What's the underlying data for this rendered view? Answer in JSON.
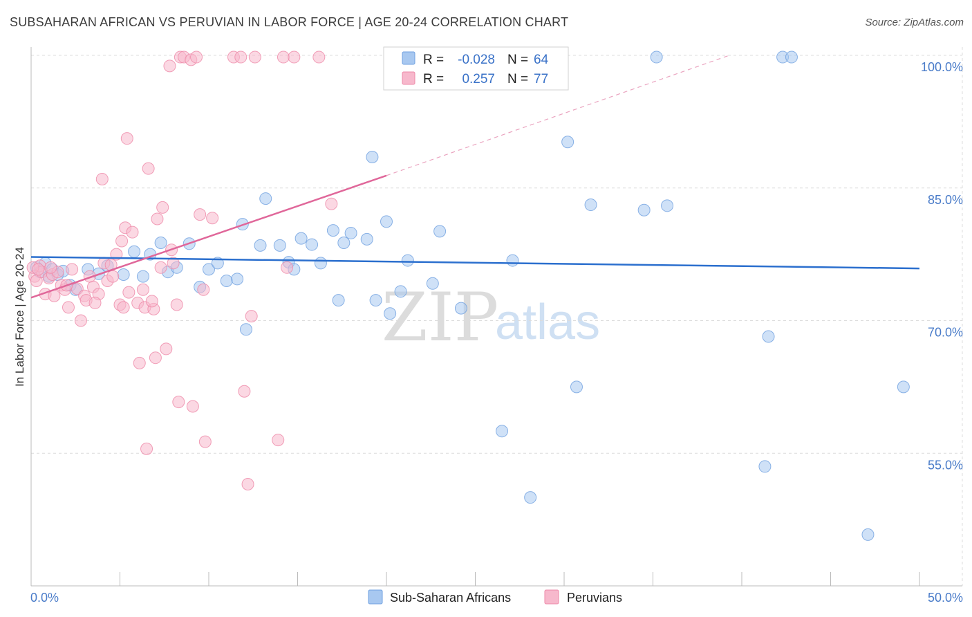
{
  "title": "SUBSAHARAN AFRICAN VS PERUVIAN IN LABOR FORCE | AGE 20-24 CORRELATION CHART",
  "source": "Source: ZipAtlas.com",
  "watermark": {
    "zip": "ZIP",
    "atlas": "atlas"
  },
  "legend": {
    "r_label": "R =",
    "n_label": "N =",
    "rows": [
      {
        "r": "-0.028",
        "n": "64",
        "color": "#a8c8f0"
      },
      {
        "r": "0.257",
        "n": "77",
        "color": "#f7b8cc"
      }
    ]
  },
  "bottom_legend": [
    "Sub-Saharan Africans",
    "Peruvians"
  ],
  "chart_data": {
    "type": "scatter",
    "title": "SUBSAHARAN AFRICAN VS PERUVIAN IN LABOR FORCE | AGE 20-24 CORRELATION CHART",
    "xlabel": "",
    "ylabel": "In Labor Force | Age 20-24",
    "xlim": [
      0,
      50
    ],
    "ylim": [
      40,
      100
    ],
    "x_tick_labels": [
      "0.0%",
      "50.0%"
    ],
    "y_tick_labels": [
      "55.0%",
      "70.0%",
      "85.0%",
      "100.0%"
    ],
    "y_ticks": [
      55,
      70,
      85,
      100
    ],
    "grid": true,
    "legend_position": "top-center",
    "series": [
      {
        "name": "Sub-Saharan Africans",
        "color": "#6fa0e0",
        "fill": "#a8c8f0",
        "r": -0.028,
        "n": 64,
        "trend": {
          "x": [
            0,
            50
          ],
          "y": [
            77.2,
            75.9
          ]
        },
        "points": [
          [
            0.3,
            76.0
          ],
          [
            0.5,
            75.5
          ],
          [
            0.8,
            76.5
          ],
          [
            1.0,
            75.0
          ],
          [
            1.2,
            75.8
          ],
          [
            1.5,
            75.2
          ],
          [
            1.8,
            75.6
          ],
          [
            2.2,
            74.0
          ],
          [
            2.5,
            73.5
          ],
          [
            3.2,
            75.8
          ],
          [
            3.8,
            75.3
          ],
          [
            4.3,
            76.2
          ],
          [
            5.2,
            75.2
          ],
          [
            5.8,
            77.8
          ],
          [
            6.3,
            75.0
          ],
          [
            6.7,
            77.5
          ],
          [
            7.3,
            78.8
          ],
          [
            7.7,
            75.5
          ],
          [
            8.2,
            76.0
          ],
          [
            8.9,
            78.7
          ],
          [
            9.5,
            73.8
          ],
          [
            10.0,
            75.8
          ],
          [
            10.5,
            76.5
          ],
          [
            11.0,
            74.5
          ],
          [
            11.6,
            74.7
          ],
          [
            11.9,
            80.9
          ],
          [
            12.1,
            69.0
          ],
          [
            12.9,
            78.5
          ],
          [
            13.2,
            83.8
          ],
          [
            14.0,
            78.5
          ],
          [
            14.5,
            76.6
          ],
          [
            14.8,
            75.8
          ],
          [
            15.2,
            79.3
          ],
          [
            15.8,
            78.6
          ],
          [
            16.3,
            76.5
          ],
          [
            17.0,
            80.2
          ],
          [
            17.3,
            72.3
          ],
          [
            17.6,
            78.8
          ],
          [
            18.0,
            79.9
          ],
          [
            18.9,
            79.2
          ],
          [
            19.2,
            88.5
          ],
          [
            19.4,
            72.3
          ],
          [
            20.0,
            81.2
          ],
          [
            20.2,
            70.8
          ],
          [
            20.8,
            73.3
          ],
          [
            21.2,
            76.8
          ],
          [
            22.6,
            74.2
          ],
          [
            23.0,
            80.1
          ],
          [
            24.2,
            71.4
          ],
          [
            26.5,
            57.5
          ],
          [
            27.1,
            76.8
          ],
          [
            28.1,
            50.0
          ],
          [
            30.2,
            90.2
          ],
          [
            30.7,
            62.5
          ],
          [
            31.5,
            83.1
          ],
          [
            34.5,
            82.5
          ],
          [
            35.8,
            83.0
          ],
          [
            35.2,
            99.8
          ],
          [
            41.3,
            53.5
          ],
          [
            41.5,
            68.2
          ],
          [
            42.3,
            99.8
          ],
          [
            42.8,
            99.8
          ],
          [
            47.1,
            45.8
          ],
          [
            49.1,
            62.5
          ]
        ]
      },
      {
        "name": "Peruvians",
        "color": "#ee88a8",
        "fill": "#f7b8cc",
        "r": 0.257,
        "n": 77,
        "trend": {
          "x": [
            0,
            20
          ],
          "y": [
            72.6,
            86.4
          ]
        },
        "trend_dashed": {
          "x": [
            20,
            39.3
          ],
          "y": [
            86.4,
            100.0
          ]
        },
        "points": [
          [
            0.2,
            75.0
          ],
          [
            0.3,
            74.5
          ],
          [
            0.5,
            76.2
          ],
          [
            0.6,
            75.5
          ],
          [
            0.8,
            73.0
          ],
          [
            1.0,
            74.8
          ],
          [
            1.2,
            75.2
          ],
          [
            1.3,
            72.8
          ],
          [
            1.5,
            75.5
          ],
          [
            1.7,
            74.0
          ],
          [
            1.9,
            73.5
          ],
          [
            2.1,
            71.5
          ],
          [
            2.3,
            75.8
          ],
          [
            2.6,
            73.6
          ],
          [
            2.8,
            70.0
          ],
          [
            3.0,
            72.8
          ],
          [
            3.1,
            72.3
          ],
          [
            3.3,
            75.0
          ],
          [
            3.5,
            73.8
          ],
          [
            3.8,
            73.0
          ],
          [
            4.0,
            86.0
          ],
          [
            4.1,
            76.5
          ],
          [
            4.3,
            74.5
          ],
          [
            4.5,
            76.3
          ],
          [
            4.6,
            75.0
          ],
          [
            4.8,
            77.5
          ],
          [
            5.0,
            71.8
          ],
          [
            5.1,
            79.0
          ],
          [
            5.2,
            71.5
          ],
          [
            5.3,
            80.5
          ],
          [
            5.4,
            90.6
          ],
          [
            5.5,
            73.2
          ],
          [
            5.7,
            80.0
          ],
          [
            6.0,
            72.0
          ],
          [
            6.1,
            65.2
          ],
          [
            6.3,
            73.5
          ],
          [
            6.4,
            71.5
          ],
          [
            6.5,
            55.5
          ],
          [
            6.6,
            87.2
          ],
          [
            6.9,
            71.3
          ],
          [
            7.0,
            65.8
          ],
          [
            7.1,
            81.5
          ],
          [
            7.3,
            76.0
          ],
          [
            7.4,
            82.8
          ],
          [
            7.6,
            66.8
          ],
          [
            7.8,
            98.8
          ],
          [
            7.9,
            78.0
          ],
          [
            8.0,
            76.5
          ],
          [
            8.2,
            71.8
          ],
          [
            8.3,
            60.8
          ],
          [
            8.4,
            99.8
          ],
          [
            8.6,
            99.8
          ],
          [
            9.0,
            99.5
          ],
          [
            9.1,
            60.3
          ],
          [
            9.3,
            99.8
          ],
          [
            9.5,
            82.0
          ],
          [
            9.7,
            73.5
          ],
          [
            9.8,
            56.3
          ],
          [
            10.2,
            81.6
          ],
          [
            11.4,
            99.8
          ],
          [
            11.8,
            99.8
          ],
          [
            12.0,
            62.0
          ],
          [
            12.2,
            51.5
          ],
          [
            12.4,
            70.5
          ],
          [
            12.6,
            99.8
          ],
          [
            13.9,
            56.5
          ],
          [
            14.2,
            99.8
          ],
          [
            14.4,
            76.0
          ],
          [
            14.8,
            99.8
          ],
          [
            16.2,
            99.8
          ],
          [
            16.9,
            83.2
          ],
          [
            0.1,
            76.0
          ],
          [
            0.4,
            75.8
          ],
          [
            1.1,
            76.0
          ],
          [
            2.0,
            74.0
          ],
          [
            3.6,
            72.0
          ],
          [
            6.8,
            72.2
          ]
        ]
      }
    ]
  }
}
